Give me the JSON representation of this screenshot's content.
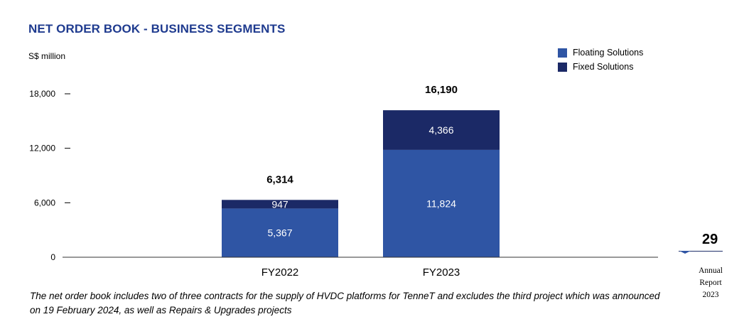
{
  "title": "NET ORDER BOOK - BUSINESS SEGMENTS",
  "unit_label": "S$ million",
  "legend": [
    {
      "label": "Floating Solutions",
      "color": "#2f55a4"
    },
    {
      "label": "Fixed Solutions",
      "color": "#1b2966"
    }
  ],
  "chart_data": {
    "type": "bar",
    "stacked": true,
    "categories": [
      "FY2022",
      "FY2023"
    ],
    "series": [
      {
        "name": "Floating Solutions",
        "values": [
          5367,
          11824
        ],
        "color": "#2f55a4"
      },
      {
        "name": "Fixed Solutions",
        "values": [
          947,
          4366
        ],
        "color": "#1b2966"
      }
    ],
    "totals": [
      6314,
      16190
    ],
    "value_labels": [
      [
        "5,367",
        "11,824"
      ],
      [
        "947",
        "4,366"
      ]
    ],
    "total_labels": [
      "6,314",
      "16,190"
    ],
    "yticks": [
      0,
      6000,
      12000,
      18000
    ],
    "ytick_labels": [
      "0",
      "6,000",
      "12,000",
      "18,000"
    ],
    "ylim": [
      0,
      18000
    ],
    "title": "NET ORDER BOOK - BUSINESS SEGMENTS",
    "ylabel": "S$ million",
    "xlabel": "",
    "grid": false,
    "legend_position": "top-right"
  },
  "footnote": "The net order book includes two of three contracts for the supply of HVDC platforms for TenneT and excludes the third project which was announced on 19 February 2024, as well as Repairs & Upgrades projects",
  "page": {
    "number": "29",
    "report_label": "Annual Report 2023"
  }
}
